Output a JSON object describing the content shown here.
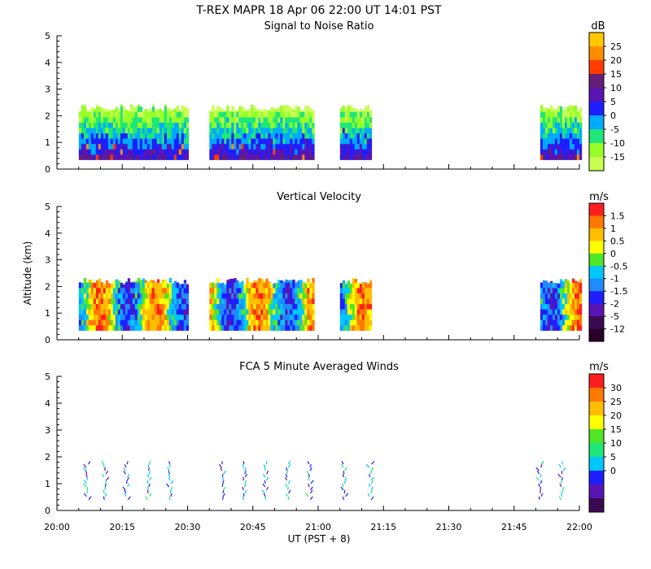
{
  "header": {
    "title": "T-REX  MAPR 18 Apr 06  22:00 UT  14:01  PST"
  },
  "shared_axes": {
    "xlabel": "UT  (PST + 8)",
    "ylabel": "Altitude (km)",
    "x_ticks": [
      "20:00",
      "20:15",
      "20:30",
      "20:45",
      "21:00",
      "21:15",
      "21:30",
      "21:45",
      "22:00"
    ],
    "y_ticks": [
      "0",
      "1",
      "2",
      "3",
      "4",
      "5"
    ],
    "xlim_minutes_after_2000": [
      0,
      120
    ],
    "ylim_km": [
      0,
      5
    ]
  },
  "chart_data": [
    {
      "type": "heatmap",
      "title": "Signal to Noise Ratio",
      "units": "dB",
      "xlabel": "",
      "ylabel": "",
      "ylim": [
        0,
        5
      ],
      "colorbar_labels": [
        "25",
        "20",
        "15",
        "10",
        "5",
        "0",
        "-5",
        "-10",
        "-15"
      ],
      "colorbar_colors": [
        "#ffc800",
        "#ff8c00",
        "#ff3c00",
        "#641e78",
        "#5a14b4",
        "#1e1eff",
        "#00aaff",
        "#1ee678",
        "#96ff28",
        "#c8ff50"
      ],
      "data_segments_minutes": [
        [
          5,
          30
        ],
        [
          35,
          59
        ],
        [
          65,
          72
        ],
        [
          111,
          120
        ]
      ],
      "data_top_km": 2.3,
      "data_bottom_km": 0.35,
      "colormap_field": "SNR"
    },
    {
      "type": "heatmap",
      "title": "Vertical Velocity",
      "units": "m/s",
      "xlabel": "",
      "ylabel": "Altitude (km)",
      "ylim": [
        0,
        5
      ],
      "colorbar_labels": [
        "1.5",
        "1",
        "0.5",
        "0",
        "-0.5",
        "-1",
        "-1.5",
        "-2",
        "-5",
        "-12"
      ],
      "colorbar_colors": [
        "#ff1e1e",
        "#ff7800",
        "#ffbe00",
        "#ffff00",
        "#50e628",
        "#00c8ff",
        "#1e8cff",
        "#1e1eff",
        "#5a14b4",
        "#3c0a50",
        "#280028"
      ],
      "data_segments_minutes": [
        [
          5,
          30
        ],
        [
          35,
          59
        ],
        [
          65,
          72
        ],
        [
          111,
          120
        ]
      ],
      "data_top_km": 2.2,
      "data_bottom_km": 0.35,
      "colormap_field": "VV"
    },
    {
      "type": "scatter",
      "title": "FCA 5 Minute Averaged Winds",
      "units": "m/s",
      "xlabel": "UT  (PST + 8)",
      "ylabel": "",
      "ylim": [
        0,
        5
      ],
      "colorbar_labels": [
        "30",
        "25",
        "20",
        "15",
        "10",
        "5",
        "0"
      ],
      "colorbar_colors": [
        "#ff1e1e",
        "#ff7800",
        "#ffbe00",
        "#ffff00",
        "#50e628",
        "#1ee678",
        "#00c8ff",
        "#1e1eff",
        "#5a14b4",
        "#3c0a50"
      ],
      "wind_profile_times_minutes": [
        7,
        11,
        16,
        21,
        26,
        38,
        43,
        48,
        53,
        58,
        66,
        72,
        111,
        116
      ],
      "wind_altitude_range_km": [
        0.4,
        1.8
      ]
    }
  ]
}
